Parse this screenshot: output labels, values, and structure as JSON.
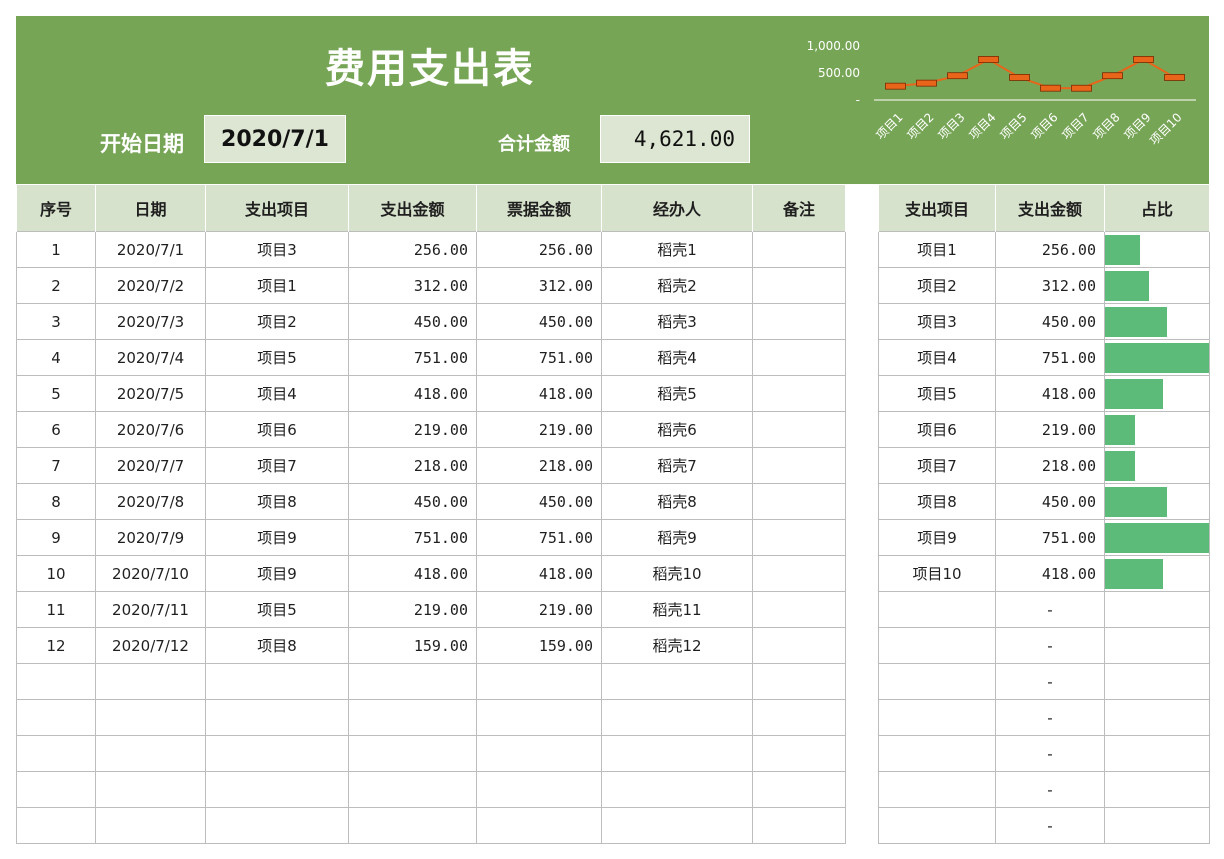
{
  "header": {
    "title": "费用支出表",
    "start_date_label": "开始日期",
    "start_date_value": "2020/7/1",
    "total_label": "合计金额",
    "total_value": "4,621.00"
  },
  "sparkline": {
    "y_ticks": [
      "1,000.00",
      "500.00",
      "-"
    ],
    "ylim": [
      0,
      1000
    ],
    "categories": [
      "项目1",
      "项目2",
      "项目3",
      "项目4",
      "项目5",
      "项目6",
      "项目7",
      "项目8",
      "项目9",
      "项目10"
    ],
    "values": [
      256,
      312,
      450,
      751,
      418,
      219,
      218,
      450,
      751,
      418
    ],
    "line_color": "#e8651a"
  },
  "main_table": {
    "headers": [
      "序号",
      "日期",
      "支出项目",
      "支出金额",
      "票据金额",
      "经办人",
      "备注"
    ],
    "rows": [
      [
        "1",
        "2020/7/1",
        "项目3",
        "256.00",
        "256.00",
        "稻壳1",
        ""
      ],
      [
        "2",
        "2020/7/2",
        "项目1",
        "312.00",
        "312.00",
        "稻壳2",
        ""
      ],
      [
        "3",
        "2020/7/3",
        "项目2",
        "450.00",
        "450.00",
        "稻壳3",
        ""
      ],
      [
        "4",
        "2020/7/4",
        "项目5",
        "751.00",
        "751.00",
        "稻壳4",
        ""
      ],
      [
        "5",
        "2020/7/5",
        "项目4",
        "418.00",
        "418.00",
        "稻壳5",
        ""
      ],
      [
        "6",
        "2020/7/6",
        "项目6",
        "219.00",
        "219.00",
        "稻壳6",
        ""
      ],
      [
        "7",
        "2020/7/7",
        "项目7",
        "218.00",
        "218.00",
        "稻壳7",
        ""
      ],
      [
        "8",
        "2020/7/8",
        "项目8",
        "450.00",
        "450.00",
        "稻壳8",
        ""
      ],
      [
        "9",
        "2020/7/9",
        "项目9",
        "751.00",
        "751.00",
        "稻壳9",
        ""
      ],
      [
        "10",
        "2020/7/10",
        "项目9",
        "418.00",
        "418.00",
        "稻壳10",
        ""
      ],
      [
        "11",
        "2020/7/11",
        "项目5",
        "219.00",
        "219.00",
        "稻壳11",
        ""
      ],
      [
        "12",
        "2020/7/12",
        "项目8",
        "159.00",
        "159.00",
        "稻壳12",
        ""
      ],
      [
        "",
        "",
        "",
        "",
        "",
        "",
        ""
      ],
      [
        "",
        "",
        "",
        "",
        "",
        "",
        ""
      ],
      [
        "",
        "",
        "",
        "",
        "",
        "",
        ""
      ],
      [
        "",
        "",
        "",
        "",
        "",
        "",
        ""
      ],
      [
        "",
        "",
        "",
        "",
        "",
        "",
        ""
      ]
    ]
  },
  "summary_table": {
    "headers": [
      "支出项目",
      "支出金额",
      "占比"
    ],
    "bar_color": "#5dbb7a",
    "rows": [
      {
        "item": "项目1",
        "amount": "256.00",
        "ratio": 0.34
      },
      {
        "item": "项目2",
        "amount": "312.00",
        "ratio": 0.42
      },
      {
        "item": "项目3",
        "amount": "450.00",
        "ratio": 0.6
      },
      {
        "item": "项目4",
        "amount": "751.00",
        "ratio": 1.0
      },
      {
        "item": "项目5",
        "amount": "418.00",
        "ratio": 0.56
      },
      {
        "item": "项目6",
        "amount": "219.00",
        "ratio": 0.29
      },
      {
        "item": "项目7",
        "amount": "218.00",
        "ratio": 0.29
      },
      {
        "item": "项目8",
        "amount": "450.00",
        "ratio": 0.6
      },
      {
        "item": "项目9",
        "amount": "751.00",
        "ratio": 1.0
      },
      {
        "item": "项目10",
        "amount": "418.00",
        "ratio": 0.56
      },
      {
        "item": "",
        "amount": "-",
        "ratio": 0
      },
      {
        "item": "",
        "amount": "-",
        "ratio": 0
      },
      {
        "item": "",
        "amount": "-",
        "ratio": 0
      },
      {
        "item": "",
        "amount": "-",
        "ratio": 0
      },
      {
        "item": "",
        "amount": "-",
        "ratio": 0
      },
      {
        "item": "",
        "amount": "-",
        "ratio": 0
      },
      {
        "item": "",
        "amount": "-",
        "ratio": 0
      }
    ]
  }
}
